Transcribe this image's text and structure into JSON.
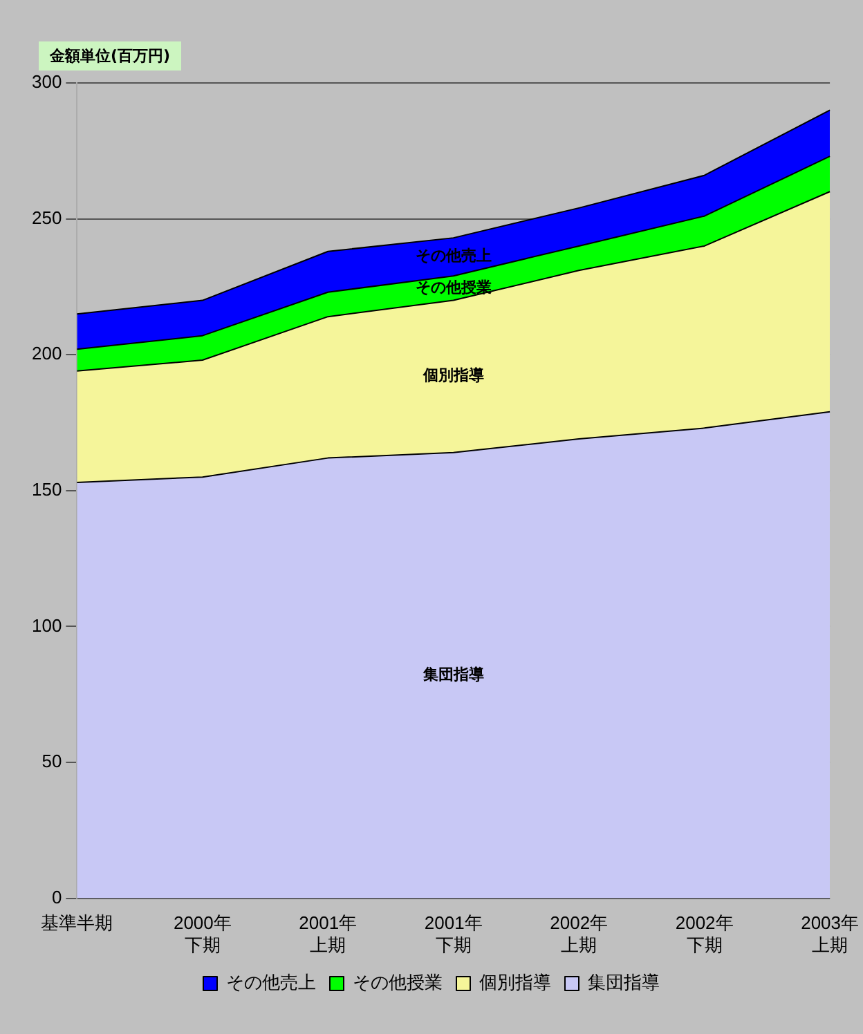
{
  "chart_data": {
    "type": "area",
    "ylabel": "金額単位(百万円)",
    "stacked": true,
    "grid": "y",
    "legend": "bottom",
    "categories": [
      "基準半期",
      "2000年下期",
      "2001年上期",
      "2001年下期",
      "2002年上期",
      "2002年下期",
      "2003年上期"
    ],
    "ylim": [
      0,
      300
    ],
    "yticks": [
      0,
      50,
      100,
      150,
      200,
      250,
      300
    ],
    "series": [
      {
        "name": "集団指導",
        "color": "#c8c8f5",
        "values": [
          153,
          155,
          162,
          164,
          169,
          173,
          179
        ]
      },
      {
        "name": "個別指導",
        "color": "#f5f59a",
        "values": [
          41,
          43,
          52,
          56,
          62,
          67,
          81
        ]
      },
      {
        "name": "その他授業",
        "color": "#00ff00",
        "values": [
          8,
          9,
          9,
          9,
          9,
          11,
          13
        ]
      },
      {
        "name": "その他売上",
        "color": "#0000ff",
        "values": [
          13,
          13,
          15,
          14,
          14,
          15,
          17
        ]
      }
    ]
  }
}
